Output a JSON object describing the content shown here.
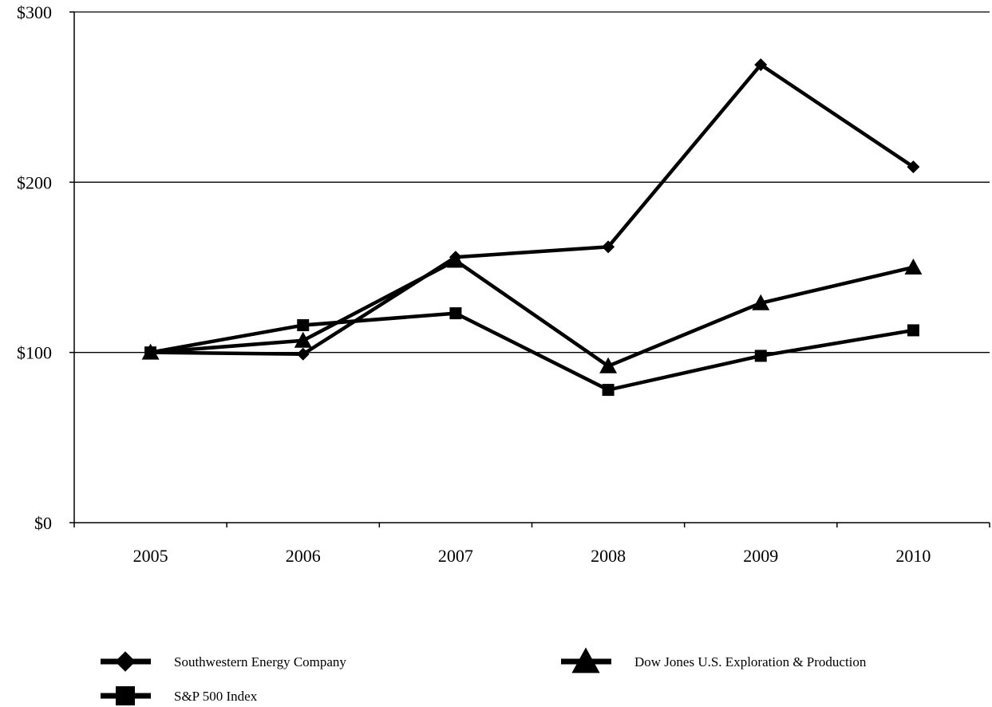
{
  "chart_data": {
    "type": "line",
    "title": "",
    "xlabel": "",
    "ylabel": "",
    "categories": [
      "2005",
      "2006",
      "2007",
      "2008",
      "2009",
      "2010"
    ],
    "y_ticks": [
      0,
      100,
      200,
      300
    ],
    "y_tick_labels": [
      "$0",
      "$100",
      "$200",
      "$300"
    ],
    "ylim": [
      0,
      300
    ],
    "grid": "horizontal",
    "legend_position": "bottom",
    "series": [
      {
        "name": "Southwestern Energy Company",
        "marker": "diamond",
        "color": "#000000",
        "values": [
          100,
          99,
          156,
          162,
          269,
          209
        ]
      },
      {
        "name": "Dow Jones U.S. Exploration & Production",
        "marker": "triangle",
        "color": "#000000",
        "values": [
          100,
          107,
          154,
          92,
          129,
          150
        ]
      },
      {
        "name": "S&P 500 Index",
        "marker": "square",
        "color": "#000000",
        "values": [
          100,
          116,
          123,
          78,
          98,
          113
        ]
      }
    ]
  }
}
